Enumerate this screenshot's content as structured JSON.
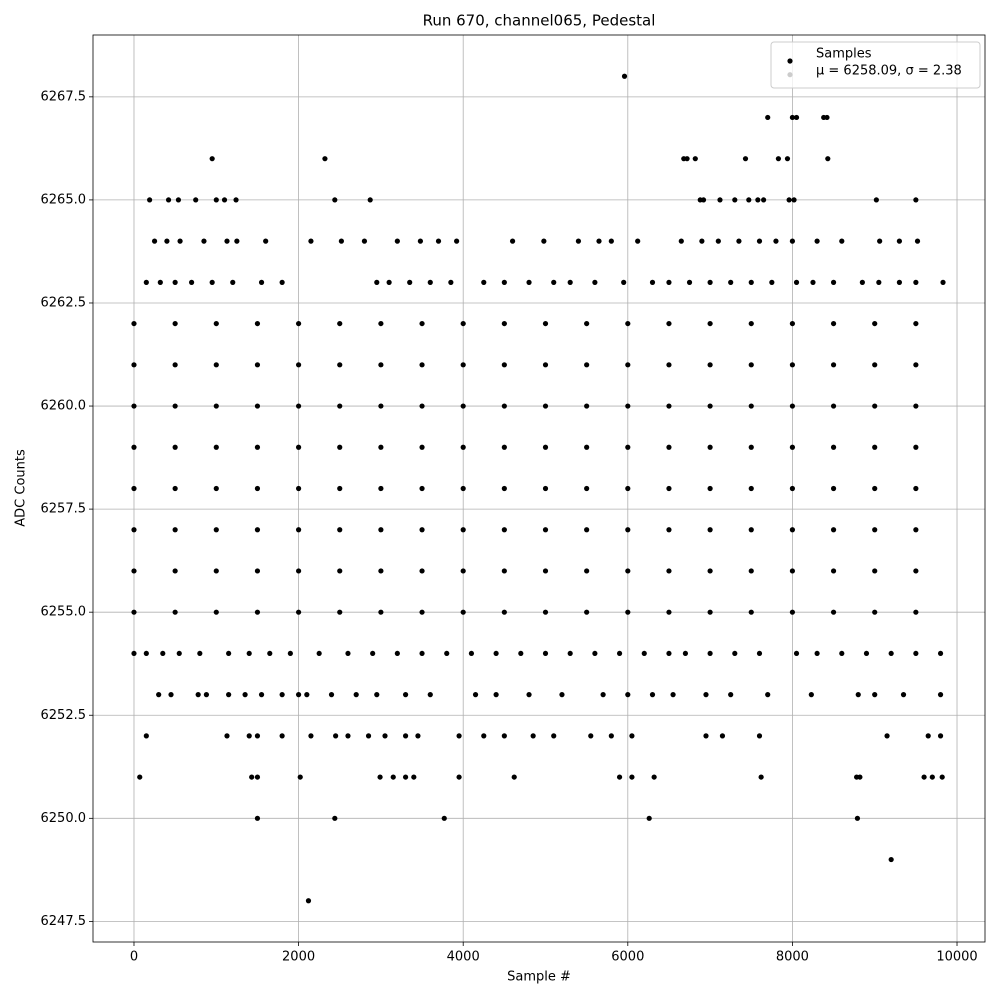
{
  "chart_data": {
    "type": "scatter",
    "title": "Run 670, channel065, Pedestal",
    "x_label": "Sample #",
    "y_label": "ADC Counts",
    "legend": [
      "Samples",
      "μ = 6258.09, σ = 2.38"
    ],
    "legend_position": "upper right",
    "color": "#000000",
    "grid": true,
    "xlim": [
      -498,
      10340
    ],
    "ylim": [
      6247.0,
      6269.0
    ],
    "xticks": [
      0,
      2000,
      4000,
      6000,
      8000,
      10000
    ],
    "yticks": [
      6247.5,
      {
        "value": 6250,
        "label": "6250.0"
      },
      6252.5,
      {
        "value": 6255,
        "label": "6255.0"
      },
      6257.5,
      {
        "value": 6260,
        "label": "6260.0"
      },
      6262.5,
      {
        "value": 6265,
        "label": "6265.0"
      },
      6267.5
    ],
    "x": [
      5960,
      7700,
      8000,
      8050,
      8380,
      8420,
      950,
      2320,
      6680,
      6720,
      6820,
      7430,
      7830,
      7940,
      8430,
      190,
      420,
      540,
      750,
      1000,
      1100,
      1240,
      2440,
      2870,
      6880,
      6920,
      7120,
      7300,
      7470,
      7580,
      7650,
      7960,
      8020,
      9020,
      9500,
      250,
      400,
      560,
      850,
      1130,
      1250,
      1600,
      2150,
      2520,
      2800,
      3200,
      3480,
      3700,
      3920,
      4600,
      4980,
      5400,
      5650,
      5800,
      6120,
      6650,
      6900,
      7100,
      7350,
      7600,
      7800,
      8000,
      8300,
      8600,
      9060,
      9300,
      9520,
      150,
      320,
      500,
      700,
      950,
      1200,
      1550,
      1800,
      2950,
      3100,
      3350,
      3600,
      3850,
      4250,
      4500,
      4800,
      5100,
      5300,
      5600,
      5950,
      6300,
      6500,
      6750,
      7000,
      7250,
      7500,
      7750,
      8050,
      8250,
      8500,
      8850,
      9050,
      9300,
      9500,
      9830,
      0,
      500,
      1000,
      1500,
      2000,
      2500,
      3000,
      3500,
      4000,
      4500,
      5000,
      5500,
      6000,
      6500,
      7000,
      7500,
      8000,
      8500,
      9000,
      9500,
      0,
      500,
      1000,
      1500,
      2000,
      2500,
      3000,
      3500,
      4000,
      4500,
      5000,
      5500,
      6000,
      6500,
      7000,
      7500,
      8000,
      8500,
      9000,
      9500,
      0,
      500,
      1000,
      1500,
      2000,
      2500,
      3000,
      3500,
      4000,
      4500,
      5000,
      5500,
      6000,
      6500,
      7000,
      7500,
      8000,
      8500,
      9000,
      9500,
      0,
      500,
      1000,
      1500,
      2000,
      2500,
      3000,
      3500,
      4000,
      4500,
      5000,
      5500,
      6000,
      6500,
      7000,
      7500,
      8000,
      8500,
      9000,
      9500,
      0,
      500,
      1000,
      1500,
      2000,
      2500,
      3000,
      3500,
      4000,
      4500,
      5000,
      5500,
      6000,
      6500,
      7000,
      7500,
      8000,
      8500,
      9000,
      9500,
      0,
      500,
      1000,
      1500,
      2000,
      2500,
      3000,
      3500,
      4000,
      4500,
      5000,
      5500,
      6000,
      6500,
      7000,
      7500,
      8000,
      8500,
      9000,
      9500,
      0,
      500,
      1000,
      1500,
      2000,
      2500,
      3000,
      3500,
      4000,
      4500,
      5000,
      5500,
      6000,
      6500,
      7000,
      7500,
      8000,
      8500,
      9000,
      9500,
      0,
      500,
      1000,
      1500,
      2000,
      2500,
      3000,
      3500,
      4000,
      4500,
      5000,
      5500,
      6000,
      6500,
      7000,
      7500,
      8000,
      8500,
      9000,
      9500,
      0,
      150,
      350,
      550,
      800,
      1150,
      1400,
      1650,
      1900,
      2250,
      2600,
      2900,
      3200,
      3500,
      3800,
      4100,
      4400,
      4700,
      5000,
      5300,
      5600,
      5900,
      6200,
      6500,
      6700,
      7000,
      7300,
      7600,
      8050,
      8300,
      8600,
      8900,
      9200,
      9500,
      9800,
      300,
      450,
      780,
      880,
      1150,
      1350,
      1550,
      1800,
      2000,
      2100,
      2400,
      2700,
      2950,
      3300,
      3600,
      4150,
      4400,
      4800,
      5200,
      5700,
      6000,
      6300,
      6550,
      6950,
      7250,
      7700,
      8230,
      8800,
      9000,
      9350,
      9800,
      150,
      1130,
      1400,
      1500,
      1800,
      2150,
      2450,
      2600,
      2850,
      3050,
      3300,
      3450,
      3950,
      4250,
      4500,
      4850,
      5100,
      5550,
      5800,
      6050,
      6950,
      7150,
      7600,
      9150,
      9650,
      9800,
      70,
      1430,
      1500,
      2020,
      2990,
      3150,
      3300,
      3400,
      3950,
      4620,
      5900,
      6050,
      6320,
      7620,
      8780,
      8820,
      9600,
      9700,
      9820,
      1500,
      2440,
      3770,
      6260,
      8790,
      9200,
      2120
    ],
    "values": [
      6268,
      6267,
      6267,
      6267,
      6267,
      6267,
      6266,
      6266,
      6266,
      6266,
      6266,
      6266,
      6266,
      6266,
      6266,
      6265,
      6265,
      6265,
      6265,
      6265,
      6265,
      6265,
      6265,
      6265,
      6265,
      6265,
      6265,
      6265,
      6265,
      6265,
      6265,
      6265,
      6265,
      6265,
      6265,
      6264,
      6264,
      6264,
      6264,
      6264,
      6264,
      6264,
      6264,
      6264,
      6264,
      6264,
      6264,
      6264,
      6264,
      6264,
      6264,
      6264,
      6264,
      6264,
      6264,
      6264,
      6264,
      6264,
      6264,
      6264,
      6264,
      6264,
      6264,
      6264,
      6264,
      6264,
      6264,
      6263,
      6263,
      6263,
      6263,
      6263,
      6263,
      6263,
      6263,
      6263,
      6263,
      6263,
      6263,
      6263,
      6263,
      6263,
      6263,
      6263,
      6263,
      6263,
      6263,
      6263,
      6263,
      6263,
      6263,
      6263,
      6263,
      6263,
      6263,
      6263,
      6263,
      6263,
      6263,
      6263,
      6263,
      6263,
      6262,
      6262,
      6262,
      6262,
      6262,
      6262,
      6262,
      6262,
      6262,
      6262,
      6262,
      6262,
      6262,
      6262,
      6262,
      6262,
      6262,
      6262,
      6262,
      6262,
      6261,
      6261,
      6261,
      6261,
      6261,
      6261,
      6261,
      6261,
      6261,
      6261,
      6261,
      6261,
      6261,
      6261,
      6261,
      6261,
      6261,
      6261,
      6261,
      6261,
      6260,
      6260,
      6260,
      6260,
      6260,
      6260,
      6260,
      6260,
      6260,
      6260,
      6260,
      6260,
      6260,
      6260,
      6260,
      6260,
      6260,
      6260,
      6260,
      6260,
      6259,
      6259,
      6259,
      6259,
      6259,
      6259,
      6259,
      6259,
      6259,
      6259,
      6259,
      6259,
      6259,
      6259,
      6259,
      6259,
      6259,
      6259,
      6259,
      6259,
      6258,
      6258,
      6258,
      6258,
      6258,
      6258,
      6258,
      6258,
      6258,
      6258,
      6258,
      6258,
      6258,
      6258,
      6258,
      6258,
      6258,
      6258,
      6258,
      6258,
      6257,
      6257,
      6257,
      6257,
      6257,
      6257,
      6257,
      6257,
      6257,
      6257,
      6257,
      6257,
      6257,
      6257,
      6257,
      6257,
      6257,
      6257,
      6257,
      6257,
      6256,
      6256,
      6256,
      6256,
      6256,
      6256,
      6256,
      6256,
      6256,
      6256,
      6256,
      6256,
      6256,
      6256,
      6256,
      6256,
      6256,
      6256,
      6256,
      6256,
      6255,
      6255,
      6255,
      6255,
      6255,
      6255,
      6255,
      6255,
      6255,
      6255,
      6255,
      6255,
      6255,
      6255,
      6255,
      6255,
      6255,
      6255,
      6255,
      6255,
      6254,
      6254,
      6254,
      6254,
      6254,
      6254,
      6254,
      6254,
      6254,
      6254,
      6254,
      6254,
      6254,
      6254,
      6254,
      6254,
      6254,
      6254,
      6254,
      6254,
      6254,
      6254,
      6254,
      6254,
      6254,
      6254,
      6254,
      6254,
      6254,
      6254,
      6254,
      6254,
      6254,
      6254,
      6254,
      6253,
      6253,
      6253,
      6253,
      6253,
      6253,
      6253,
      6253,
      6253,
      6253,
      6253,
      6253,
      6253,
      6253,
      6253,
      6253,
      6253,
      6253,
      6253,
      6253,
      6253,
      6253,
      6253,
      6253,
      6253,
      6253,
      6253,
      6253,
      6253,
      6253,
      6253,
      6252,
      6252,
      6252,
      6252,
      6252,
      6252,
      6252,
      6252,
      6252,
      6252,
      6252,
      6252,
      6252,
      6252,
      6252,
      6252,
      6252,
      6252,
      6252,
      6252,
      6252,
      6252,
      6252,
      6252,
      6252,
      6252,
      6251,
      6251,
      6251,
      6251,
      6251,
      6251,
      6251,
      6251,
      6251,
      6251,
      6251,
      6251,
      6251,
      6251,
      6251,
      6251,
      6251,
      6251,
      6251,
      6250,
      6250,
      6250,
      6250,
      6250,
      6249,
      6248
    ]
  }
}
